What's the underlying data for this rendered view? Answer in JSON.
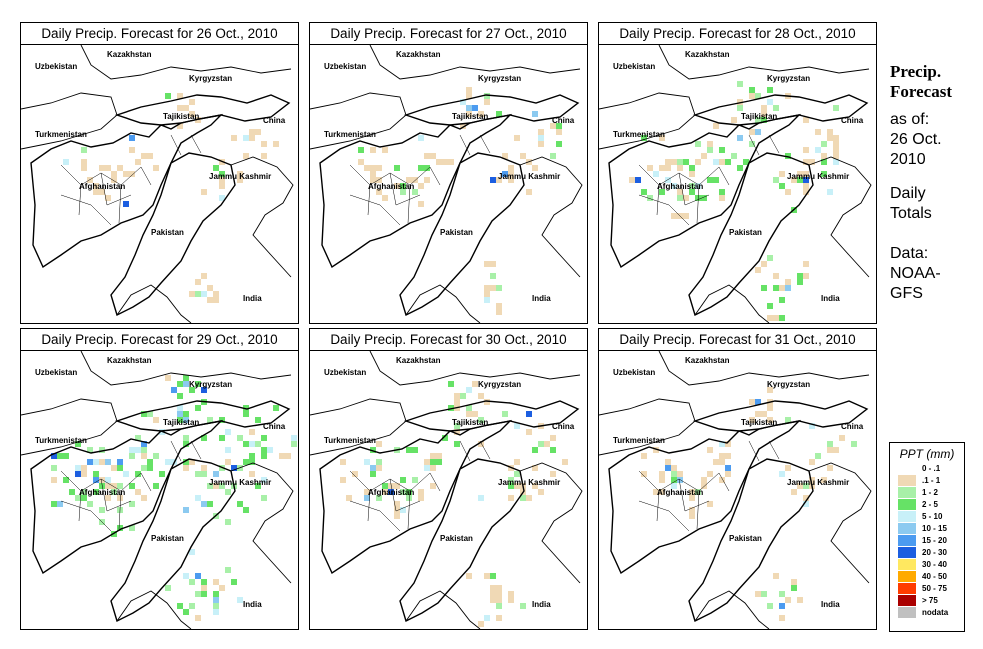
{
  "panels": [
    {
      "title": "Daily Precip. Forecast for  26 Oct., 2010",
      "intensity": 0.2
    },
    {
      "title": "Daily Precip. Forecast for  27 Oct., 2010",
      "intensity": 0.25
    },
    {
      "title": "Daily Precip. Forecast for  28 Oct., 2010",
      "intensity": 0.6
    },
    {
      "title": "Daily Precip. Forecast for  29 Oct., 2010",
      "intensity": 0.9
    },
    {
      "title": "Daily Precip. Forecast for  30 Oct., 2010",
      "intensity": 0.55
    },
    {
      "title": "Daily Precip. Forecast for  31 Oct., 2010",
      "intensity": 0.3
    }
  ],
  "map_labels": {
    "kazakhstan": "Kazakhstan",
    "uzbekistan": "Uzbekistan",
    "kyrgyzstan": "Kyrgyzstan",
    "tajikistan": "Tajikistan",
    "turkmenistan": "Turkmenistan",
    "china": "China",
    "afghanistan": "Afghanistan",
    "jammu_kashmir": "Jammu Kashmir",
    "pakistan": "Pakistan",
    "india": "India"
  },
  "sidebar": {
    "title_line1": "Precip.",
    "title_line2": "Forecast",
    "asof_line1": "as of:",
    "asof_line2": "26 Oct.",
    "asof_line3": "2010",
    "totals_line1": "Daily",
    "totals_line2": "Totals",
    "data_line1": "Data:",
    "data_line2": "NOAA-",
    "data_line3": "GFS"
  },
  "legend": {
    "title": "PPT (mm)",
    "items": [
      {
        "label": "0 - .1",
        "color": "#ffffff"
      },
      {
        "label": ".1 - 1",
        "color": "#f0d9b5"
      },
      {
        "label": "1 - 2",
        "color": "#a8f0a8"
      },
      {
        "label": "2 - 5",
        "color": "#66e266"
      },
      {
        "label": "5 - 10",
        "color": "#c8f0f8"
      },
      {
        "label": "10 - 15",
        "color": "#8ccaf0"
      },
      {
        "label": "15 - 20",
        "color": "#4c9bf0"
      },
      {
        "label": "20 - 30",
        "color": "#1c5ee0"
      },
      {
        "label": "30 - 40",
        "color": "#ffe860"
      },
      {
        "label": "40 - 50",
        "color": "#ffaa00"
      },
      {
        "label": "50 - 75",
        "color": "#ff3c00"
      },
      {
        "label": "> 75",
        "color": "#aa0000"
      },
      {
        "label": "nodata",
        "color": "#c0c0c0"
      }
    ]
  }
}
